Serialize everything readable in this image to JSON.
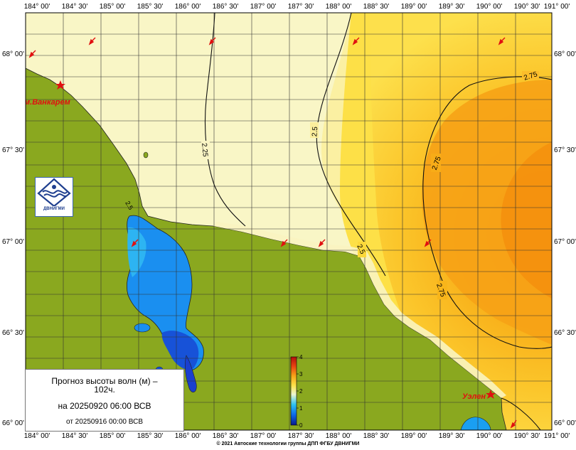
{
  "map": {
    "top_ticks": [
      "184° 00'",
      "184° 30'",
      "185° 00'",
      "185° 30'",
      "186° 00'",
      "186° 30'",
      "187° 00'",
      "187° 30'",
      "188° 00'",
      "188° 30'",
      "189° 00'",
      "189° 30'",
      "190° 00'",
      "190° 30'",
      "191° 00'"
    ],
    "bottom_ticks": [
      "184° 00'",
      "184° 30'",
      "185° 00'",
      "185° 30'",
      "186° 00'",
      "186° 30'",
      "187° 00'",
      "187° 30'",
      "188° 00'",
      "188° 30'",
      "189° 00'",
      "189° 30'",
      "190° 00'",
      "190° 30'",
      "191° 00'"
    ],
    "lat_ticks": [
      "68° 00'",
      "67° 30'",
      "67° 00'",
      "66° 30'",
      "66° 00'"
    ],
    "contours": [
      "2.75",
      "2.75",
      "2.75",
      "2.5",
      "2.5",
      "2.25",
      "2.5"
    ],
    "places": [
      "м.Ванкарем",
      "Уэлен"
    ],
    "colors": {
      "land": "#8aa81f",
      "sea_low": "#f9f6c7",
      "sea_mid": "#fbd33c",
      "sea_high": "#f6a012",
      "lagoon": "#1589ee",
      "marker": "#ee1111"
    }
  },
  "legend": {
    "title_line1": "Прогноз высоты волн (м) –",
    "title_line2": "102ч.",
    "forecast_date": "на 20250920 06:00 ВСВ",
    "issued": "от 20250916 00:00 ВСВ",
    "scale_labels": [
      "4",
      "3",
      "2",
      "1",
      "0"
    ]
  },
  "logo": {
    "text": "ДВНИГМИ",
    "icon": "dvnigmi-logo-icon"
  },
  "footer": {
    "copyright": "© 2021 Автоские технологии группы ДПП ФГБУ ДВНИГМИ"
  }
}
